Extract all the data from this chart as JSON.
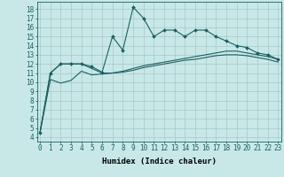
{
  "title": "",
  "xlabel": "Humidex (Indice chaleur)",
  "bg_color": "#c8e8e8",
  "grid_color": "#a8c8c8",
  "line_color": "#1a6060",
  "x_ticks": [
    0,
    1,
    2,
    3,
    4,
    5,
    6,
    7,
    8,
    9,
    10,
    11,
    12,
    13,
    14,
    15,
    16,
    17,
    18,
    19,
    20,
    21,
    22,
    23
  ],
  "y_ticks": [
    4,
    5,
    6,
    7,
    8,
    9,
    10,
    11,
    12,
    13,
    14,
    15,
    16,
    17,
    18
  ],
  "ylim": [
    3.5,
    18.8
  ],
  "xlim": [
    -0.3,
    23.3
  ],
  "spiky_x": [
    0,
    1,
    2,
    3,
    4,
    5,
    6,
    7,
    8,
    9,
    10,
    11,
    12,
    13,
    14,
    15,
    16,
    17,
    18,
    19,
    20,
    21,
    22,
    23
  ],
  "spiky_y": [
    4.5,
    11.0,
    12.0,
    12.0,
    12.0,
    11.7,
    11.1,
    15.0,
    13.5,
    18.2,
    17.0,
    15.0,
    15.7,
    15.7,
    15.0,
    15.7,
    15.7,
    15.0,
    14.5,
    14.0,
    13.8,
    13.2,
    13.0,
    12.5
  ],
  "smooth1_x": [
    0,
    1,
    2,
    3,
    4,
    5,
    6,
    7,
    8,
    9,
    10,
    11,
    12,
    13,
    14,
    15,
    16,
    17,
    18,
    19,
    20,
    21,
    22,
    23
  ],
  "smooth1_y": [
    4.5,
    11.0,
    12.0,
    12.0,
    12.0,
    11.5,
    11.0,
    11.0,
    11.2,
    11.5,
    11.8,
    12.0,
    12.2,
    12.4,
    12.6,
    12.8,
    13.0,
    13.2,
    13.4,
    13.4,
    13.2,
    13.0,
    12.8,
    12.5
  ],
  "smooth2_x": [
    0,
    1,
    2,
    3,
    4,
    5,
    6,
    7,
    8,
    9,
    10,
    11,
    12,
    13,
    14,
    15,
    16,
    17,
    18,
    19,
    20,
    21,
    22,
    23
  ],
  "smooth2_y": [
    4.5,
    10.3,
    9.9,
    10.2,
    11.2,
    10.8,
    10.9,
    11.0,
    11.1,
    11.3,
    11.6,
    11.8,
    12.0,
    12.2,
    12.4,
    12.5,
    12.7,
    12.9,
    13.0,
    13.0,
    12.9,
    12.7,
    12.5,
    12.2
  ],
  "tick_fontsize": 5.5,
  "xlabel_fontsize": 6.5
}
